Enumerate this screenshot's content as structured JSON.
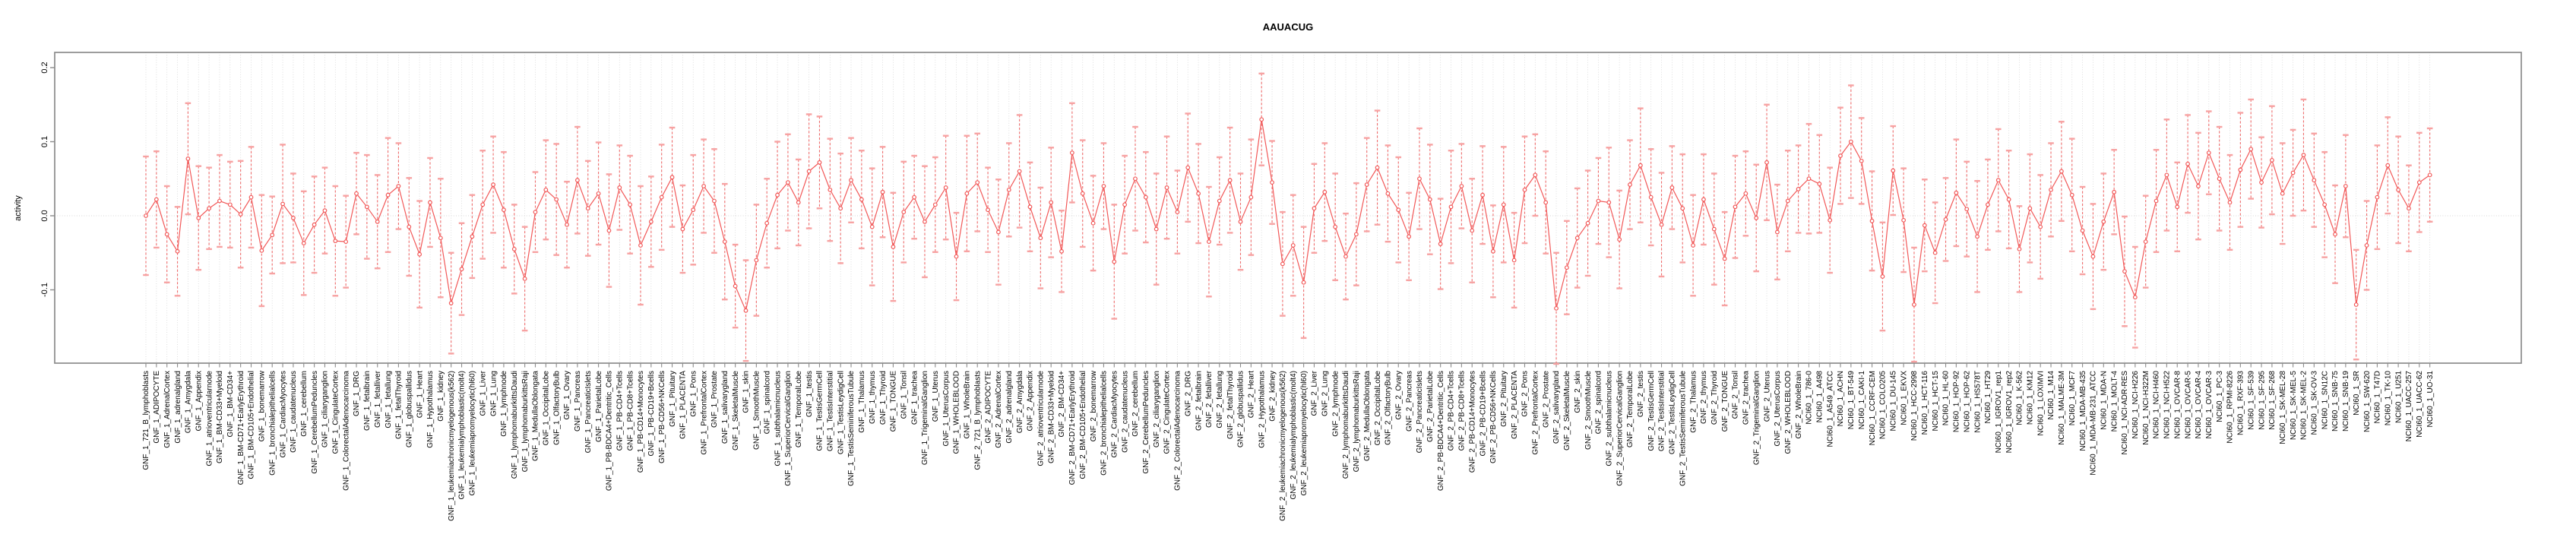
{
  "chart_data": {
    "type": "line",
    "title": "AAUACUG",
    "xlabel": "",
    "ylabel": "activity",
    "ylim": [
      -0.2,
      0.22
    ],
    "yticks": [
      -0.1,
      0.0,
      0.1,
      0.2
    ],
    "ytick_labels": [
      "-0.1",
      "0.0",
      "0.1",
      "0.2"
    ],
    "grid": "vertical dotted line per category and dotted horizontal line at 0.0",
    "legend_position": "none",
    "marker": "open-circle with dashed error bars and capped whiskers, points connected by solid line",
    "colors": {
      "series": "#f25858",
      "error_stem": "#ef6b6b",
      "error_cap": "#f7a2a2",
      "axis": "#8c8c8c",
      "grid": "#d6d6d6",
      "text": "#000000",
      "background": "#ffffff"
    },
    "categories": [
      "GNF_1_721_B_lymphoblasts",
      "GNF_1_ADIPOCYTE",
      "GNF_1_AdrenalCortex",
      "GNF_1_adrenalgland",
      "GNF_1_Amygdala",
      "GNF_1_Appendix",
      "GNF_1_atrioventricularnode",
      "GNF_1_BM-CD33+Myeloid",
      "GNF_1_BM-CD34+",
      "GNF_1_BM-CD71+EarlyErythroid",
      "GNF_1_BM-CD105+Endothelial",
      "GNF_1_bonemarrow",
      "GNF_1_bronchialepithelialcells",
      "GNF_1_CardiacMyocytes",
      "GNF_1_caudatenucleus",
      "GNF_1_cerebellum",
      "GNF_1_CerebellumPeduncles",
      "GNF_1_ciliaryganglion",
      "GNF_1_CingulateCortex",
      "GNF_1_ColorectalAdenocarcinoma",
      "GNF_1_DRG",
      "GNF_1_fetalbrain",
      "GNF_1_fetalliver",
      "GNF_1_fetallung",
      "GNF_1_fetalThyroid",
      "GNF_1_globuspallidus",
      "GNF_1_Heart",
      "GNF_1_Hypothalamus",
      "GNF_1_kidney",
      "GNF_1_leukemiachronicmyelogenous(k562)",
      "GNF_1_leukemialymphoblastic(molt4)",
      "GNF_1_leukemiapromyelocytic(hl60)",
      "GNF_1_Liver",
      "GNF_1_Lung",
      "GNF_1_lymphnode",
      "GNF_1_lymphomaburkittsDaudi",
      "GNF_1_lymphomaburkittsRaji",
      "GNF_1_MedullaOblongata",
      "GNF_1_OccipitalLobe",
      "GNF_1_OlfactoryBulb",
      "GNF_1_Ovary",
      "GNF_1_Pancreas",
      "GNF_1_PancreaticIslets",
      "GNF_1_ParietalLobe",
      "GNF_1_PB-BDCA4+Dentritic_Cells",
      "GNF_1_PB-CD4+Tcells",
      "GNF_1_PB-CD8+Tcells",
      "GNF_1_PB-CD14+Monocytes",
      "GNF_1_PB-CD19+Bcells",
      "GNF_1_PB-CD56+NKCells",
      "GNF_1_Pituitary",
      "GNF_1_PLACENTA",
      "GNF_1_Pons",
      "GNF_1_PrefrontalCortex",
      "GNF_1_Prostate",
      "GNF_1_salivarygland",
      "GNF_1_SkeletalMuscle",
      "GNF_1_skin",
      "GNF_1_SmoothMuscle",
      "GNF_1_spinalcord",
      "GNF_1_subthalamicnucleus",
      "GNF_1_SuperiorCervicalGanglion",
      "GNF_1_TemporalLobe",
      "GNF_1_testis",
      "GNF_1_TestisGermCell",
      "GNF_1_TestisInterstitial",
      "GNF_1_TestisLeydigCell",
      "GNF_1_TestisSeminiferousTubule",
      "GNF_1_Thalamus",
      "GNF_1_thymus",
      "GNF_1_Thyroid",
      "GNF_1_TONGUE",
      "GNF_1_Tonsil",
      "GNF_1_trachea",
      "GNF_1_TrigeminalGanglion",
      "GNF_1_Uterus",
      "GNF_1_UterusCorpus",
      "GNF_1_WHOLEBLOOD",
      "GNF_1_WholeBrain",
      "GNF_2_721_B_lymphoblasts",
      "GNF_2_ADIPOCYTE",
      "GNF_2_AdrenalCortex",
      "GNF_2_adrenalgland",
      "GNF_2_Amygdala",
      "GNF_2_Appendix",
      "GNF_2_atrioventricularnode",
      "GNF_2_BM-CD33+Myeloid",
      "GNF_2_BM-CD34+",
      "GNF_2_BM-CD71+EarlyErythroid",
      "GNF_2_BM-CD105+Endothelial",
      "GNF_2_bonemarrow",
      "GNF_2_bronchialepithelialcells",
      "GNF_2_CardiacMyocytes",
      "GNF_2_caudatenucleus",
      "GNF_2_cerebellum",
      "GNF_2_CerebellumPeduncles",
      "GNF_2_ciliaryganglion",
      "GNF_2_CingulateCortex",
      "GNF_2_ColorectalAdenocarcinoma",
      "GNF_2_DRG",
      "GNF_2_fetalbrain",
      "GNF_2_fetalliver",
      "GNF_2_fetallung",
      "GNF_2_fetalThyroid",
      "GNF_2_globuspallidus",
      "GNF_2_Heart",
      "GNF_2_Hypothalamus",
      "GNF_2_kidney",
      "GNF_2_leukemiachronicmyelogenous(k562)",
      "GNF_2_leukemialymphoblastic(molt4)",
      "GNF_2_leukemiapromyelocytic(hl60)",
      "GNF_2_Liver",
      "GNF_2_Lung",
      "GNF_2_lymphnode",
      "GNF_2_lymphomaburkittsDaudi",
      "GNF_2_lymphomaburkittsRaji",
      "GNF_2_MedullaOblongata",
      "GNF_2_OccipitalLobe",
      "GNF_2_OlfactoryBulb",
      "GNF_2_Ovary",
      "GNF_2_Pancreas",
      "GNF_2_PancreaticIslets",
      "GNF_2_ParietalLobe",
      "GNF_2_PB-BDCA4+Dentritic_Cells",
      "GNF_2_PB-CD4+Tcells",
      "GNF_2_PB-CD8+Tcells",
      "GNF_2_PB-CD14+Monocytes",
      "GNF_2_PB-CD19+Bcells",
      "GNF_2_PB-CD56+NKCells",
      "GNF_2_Pituitary",
      "GNF_2_PLACENTA",
      "GNF_2_Pons",
      "GNF_2_PrefrontalCortex",
      "GNF_2_Prostate",
      "GNF_2_salivarygland",
      "GNF_2_SkeletalMuscle",
      "GNF_2_skin",
      "GNF_2_SmoothMuscle",
      "GNF_2_spinalcord",
      "GNF_2_subthalamicnucleus",
      "GNF_2_SuperiorCervicalGanglion",
      "GNF_2_TemporalLobe",
      "GNF_2_testis",
      "GNF_2_TestisGermCell",
      "GNF_2_TestisInterstitial",
      "GNF_2_TestisLeydigCell",
      "GNF_2_TestisSeminiferousTubule",
      "GNF_2_Thalamus",
      "GNF_2_thymus",
      "GNF_2_Thyroid",
      "GNF_2_TONGUE",
      "GNF_2_Tonsil",
      "GNF_2_trachea",
      "GNF_2_TrigeminalGanglion",
      "GNF_2_Uterus",
      "GNF_2_UterusCorpus",
      "GNF_2_WHOLEBLOOD",
      "GNF_2_WholeBrain",
      "NCI60_1_786-0",
      "NCI60_1_A498",
      "NCI60_1_A549_ATCC",
      "NCI60_1_ACHN",
      "NCI60_1_BT-549",
      "NCI60_1_CAKI-1",
      "NCI60_1_CCRF-CEM",
      "NCI60_1_COLO205",
      "NCI60_1_DU-145",
      "NCI60_1_EKVX",
      "NCI60_1_HCC-2998",
      "NCI60_1_HCT-116",
      "NCI60_1_HCT-15",
      "NCI60_1_HL-60",
      "NCI60_1_HOP-92",
      "NCI60_1_HOP-62",
      "NCI60_1_HS578T",
      "NCI60_1_HT29",
      "NCI60_1_IGROV1_rep1",
      "NCI60_1_IGROV1_rep2",
      "NCI60_1_K-562",
      "NCI60_1_KM12",
      "NCI60_1_LOXIMVI",
      "NCI60_1_M14",
      "NCI60_1_MALME-3M",
      "NCI60_1_MCF7",
      "NCI60_1_MDA-MB-435",
      "NCI60_1_MDA-MB-231_ATCC",
      "NCI60_1_MDA-N",
      "NCI60_1_MOLT-4",
      "NCI60_1_NCI-ADR-RES",
      "NCI60_1_NCI-H226",
      "NCI60_1_NCI-H322M",
      "NCI60_1_NCI-H460",
      "NCI60_1_NCI-H522",
      "NCI60_1_OVCAR-8",
      "NCI60_1_OVCAR-5",
      "NCI60_1_OVCAR-4",
      "NCI60_1_OVCAR-3",
      "NCI60_1_PC-3",
      "NCI60_1_RPMI-8226",
      "NCI60_1_RXF-393",
      "NCI60_1_SF-539",
      "NCI60_1_SF-295",
      "NCI60_1_SF-268",
      "NCI60_1_SK-MEL-28",
      "NCI60_1_SK-MEL-5",
      "NCI60_1_SK-MEL-2",
      "NCI60_1_SK-OV-3",
      "NCI60_1_SN12C",
      "NCI60_1_SNB-75",
      "NCI60_1_SNB-19",
      "NCI60_1_SR",
      "NCI60_1_SW-620",
      "NCI60_1_T47D",
      "NCI60_1_TK-10",
      "NCI60_1_U251",
      "NCI60_1_UACC-257",
      "NCI60_1_UACC-62",
      "NCI60_1_UO-31"
    ],
    "series": [
      {
        "name": "activity",
        "values": [
          0.0,
          0.022,
          -0.025,
          -0.048,
          0.077,
          -0.003,
          0.01,
          0.02,
          0.015,
          0.002,
          0.025,
          -0.047,
          -0.026,
          0.016,
          -0.003,
          -0.037,
          -0.012,
          0.007,
          -0.034,
          -0.035,
          0.03,
          0.012,
          -0.008,
          0.028,
          0.04,
          -0.015,
          -0.052,
          0.018,
          -0.03,
          -0.118,
          -0.072,
          -0.028,
          0.015,
          0.042,
          0.008,
          -0.045,
          -0.085,
          0.005,
          0.035,
          0.022,
          -0.012,
          0.048,
          0.01,
          0.03,
          -0.02,
          0.038,
          0.015,
          -0.04,
          -0.008,
          0.025,
          0.052,
          -0.018,
          0.008,
          0.04,
          0.02,
          -0.035,
          -0.095,
          -0.128,
          -0.06,
          -0.01,
          0.028,
          0.045,
          0.018,
          0.06,
          0.072,
          0.035,
          0.01,
          0.048,
          0.022,
          -0.015,
          0.032,
          -0.042,
          0.005,
          0.025,
          -0.008,
          0.015,
          0.038,
          -0.055,
          0.03,
          0.045,
          0.008,
          -0.022,
          0.035,
          0.06,
          0.012,
          -0.03,
          0.018,
          -0.048,
          0.085,
          0.03,
          -0.01,
          0.04,
          -0.062,
          0.015,
          0.05,
          0.025,
          -0.018,
          0.038,
          0.005,
          0.065,
          0.03,
          -0.035,
          0.02,
          0.048,
          -0.008,
          0.025,
          0.13,
          0.045,
          -0.065,
          -0.04,
          -0.09,
          0.01,
          0.032,
          -0.015,
          -0.055,
          -0.025,
          0.042,
          0.065,
          0.03,
          0.008,
          -0.028,
          0.05,
          0.022,
          -0.038,
          0.012,
          0.04,
          -0.02,
          0.028,
          -0.048,
          0.015,
          -0.06,
          0.035,
          0.055,
          0.018,
          -0.125,
          -0.07,
          -0.03,
          -0.01,
          0.02,
          0.018,
          -0.032,
          0.042,
          0.068,
          0.025,
          -0.012,
          0.038,
          0.01,
          -0.04,
          0.022,
          -0.018,
          -0.058,
          0.012,
          0.03,
          -0.003,
          0.072,
          -0.022,
          0.02,
          0.036,
          0.05,
          0.043,
          -0.006,
          0.081,
          0.1,
          0.074,
          -0.007,
          -0.082,
          0.061,
          -0.006,
          -0.12,
          -0.013,
          -0.05,
          -0.005,
          0.031,
          0.009,
          -0.028,
          0.015,
          0.048,
          0.022,
          -0.045,
          0.01,
          -0.015,
          0.035,
          0.06,
          0.028,
          -0.02,
          -0.055,
          -0.008,
          0.032,
          -0.075,
          -0.11,
          -0.035,
          0.02,
          0.055,
          0.012,
          0.07,
          0.04,
          0.085,
          0.05,
          0.018,
          0.062,
          0.09,
          0.045,
          0.075,
          0.03,
          0.058,
          0.082,
          0.048,
          0.015,
          -0.025,
          0.04,
          -0.12,
          -0.04,
          0.025,
          0.068,
          0.035,
          0.01,
          0.045,
          0.055
        ],
        "errors": [
          0.08,
          0.065,
          0.065,
          0.06,
          0.075,
          0.07,
          0.055,
          0.062,
          0.058,
          0.072,
          0.068,
          0.075,
          0.052,
          0.08,
          0.06,
          0.07,
          0.065,
          0.058,
          0.074,
          0.062,
          0.055,
          0.07,
          0.063,
          0.077,
          0.058,
          0.066,
          0.072,
          0.06,
          0.08,
          0.068,
          0.062,
          0.056,
          0.073,
          0.065,
          0.078,
          0.06,
          0.07,
          0.054,
          0.067,
          0.075,
          0.058,
          0.072,
          0.064,
          0.069,
          0.076,
          0.057,
          0.066,
          0.08,
          0.061,
          0.071,
          0.067,
          0.059,
          0.074,
          0.063,
          0.07,
          0.078,
          0.056,
          0.068,
          0.075,
          0.06,
          0.072,
          0.065,
          0.058,
          0.077,
          0.062,
          0.069,
          0.074,
          0.057,
          0.066,
          0.079,
          0.061,
          0.073,
          0.068,
          0.056,
          0.075,
          0.064,
          0.07,
          0.059,
          0.078,
          0.066,
          0.057,
          0.071,
          0.063,
          0.076,
          0.06,
          0.068,
          0.074,
          0.055,
          0.067,
          0.072,
          0.064,
          0.058,
          0.077,
          0.066,
          0.07,
          0.061,
          0.075,
          0.069,
          0.056,
          0.073,
          0.067,
          0.074,
          0.059,
          0.071,
          0.065,
          0.078,
          0.062,
          0.056,
          0.07,
          0.068,
          0.075,
          0.06,
          0.066,
          0.072,
          0.058,
          0.069,
          0.063,
          0.077,
          0.065,
          0.071,
          0.059,
          0.068,
          0.074,
          0.061,
          0.076,
          0.057,
          0.07,
          0.066,
          0.062,
          0.078,
          0.064,
          0.072,
          0.055,
          0.069,
          0.075,
          0.063,
          0.067,
          0.071,
          0.058,
          0.074,
          0.066,
          0.06,
          0.077,
          0.065,
          0.07,
          0.056,
          0.073,
          0.068,
          0.061,
          0.075,
          0.063,
          0.069,
          0.057,
          0.072,
          0.078,
          0.064,
          0.068,
          0.059,
          0.074,
          0.066,
          0.071,
          0.065,
          0.076,
          0.058,
          0.067,
          0.073,
          0.06,
          0.07,
          0.077,
          0.062,
          0.068,
          0.056,
          0.072,
          0.064,
          0.075,
          0.061,
          0.069,
          0.066,
          0.058,
          0.073,
          0.07,
          0.063,
          0.067,
          0.076,
          0.059,
          0.071,
          0.065,
          0.057,
          0.074,
          0.068,
          0.062,
          0.069,
          0.075,
          0.06,
          0.066,
          0.072,
          0.056,
          0.07,
          0.064,
          0.077,
          0.067,
          0.061,
          0.073,
          0.068,
          0.058,
          0.075,
          0.063,
          0.071,
          0.066,
          0.069,
          0.074,
          0.06,
          0.07,
          0.065,
          0.072,
          0.058,
          0.067,
          0.063
        ]
      }
    ]
  }
}
